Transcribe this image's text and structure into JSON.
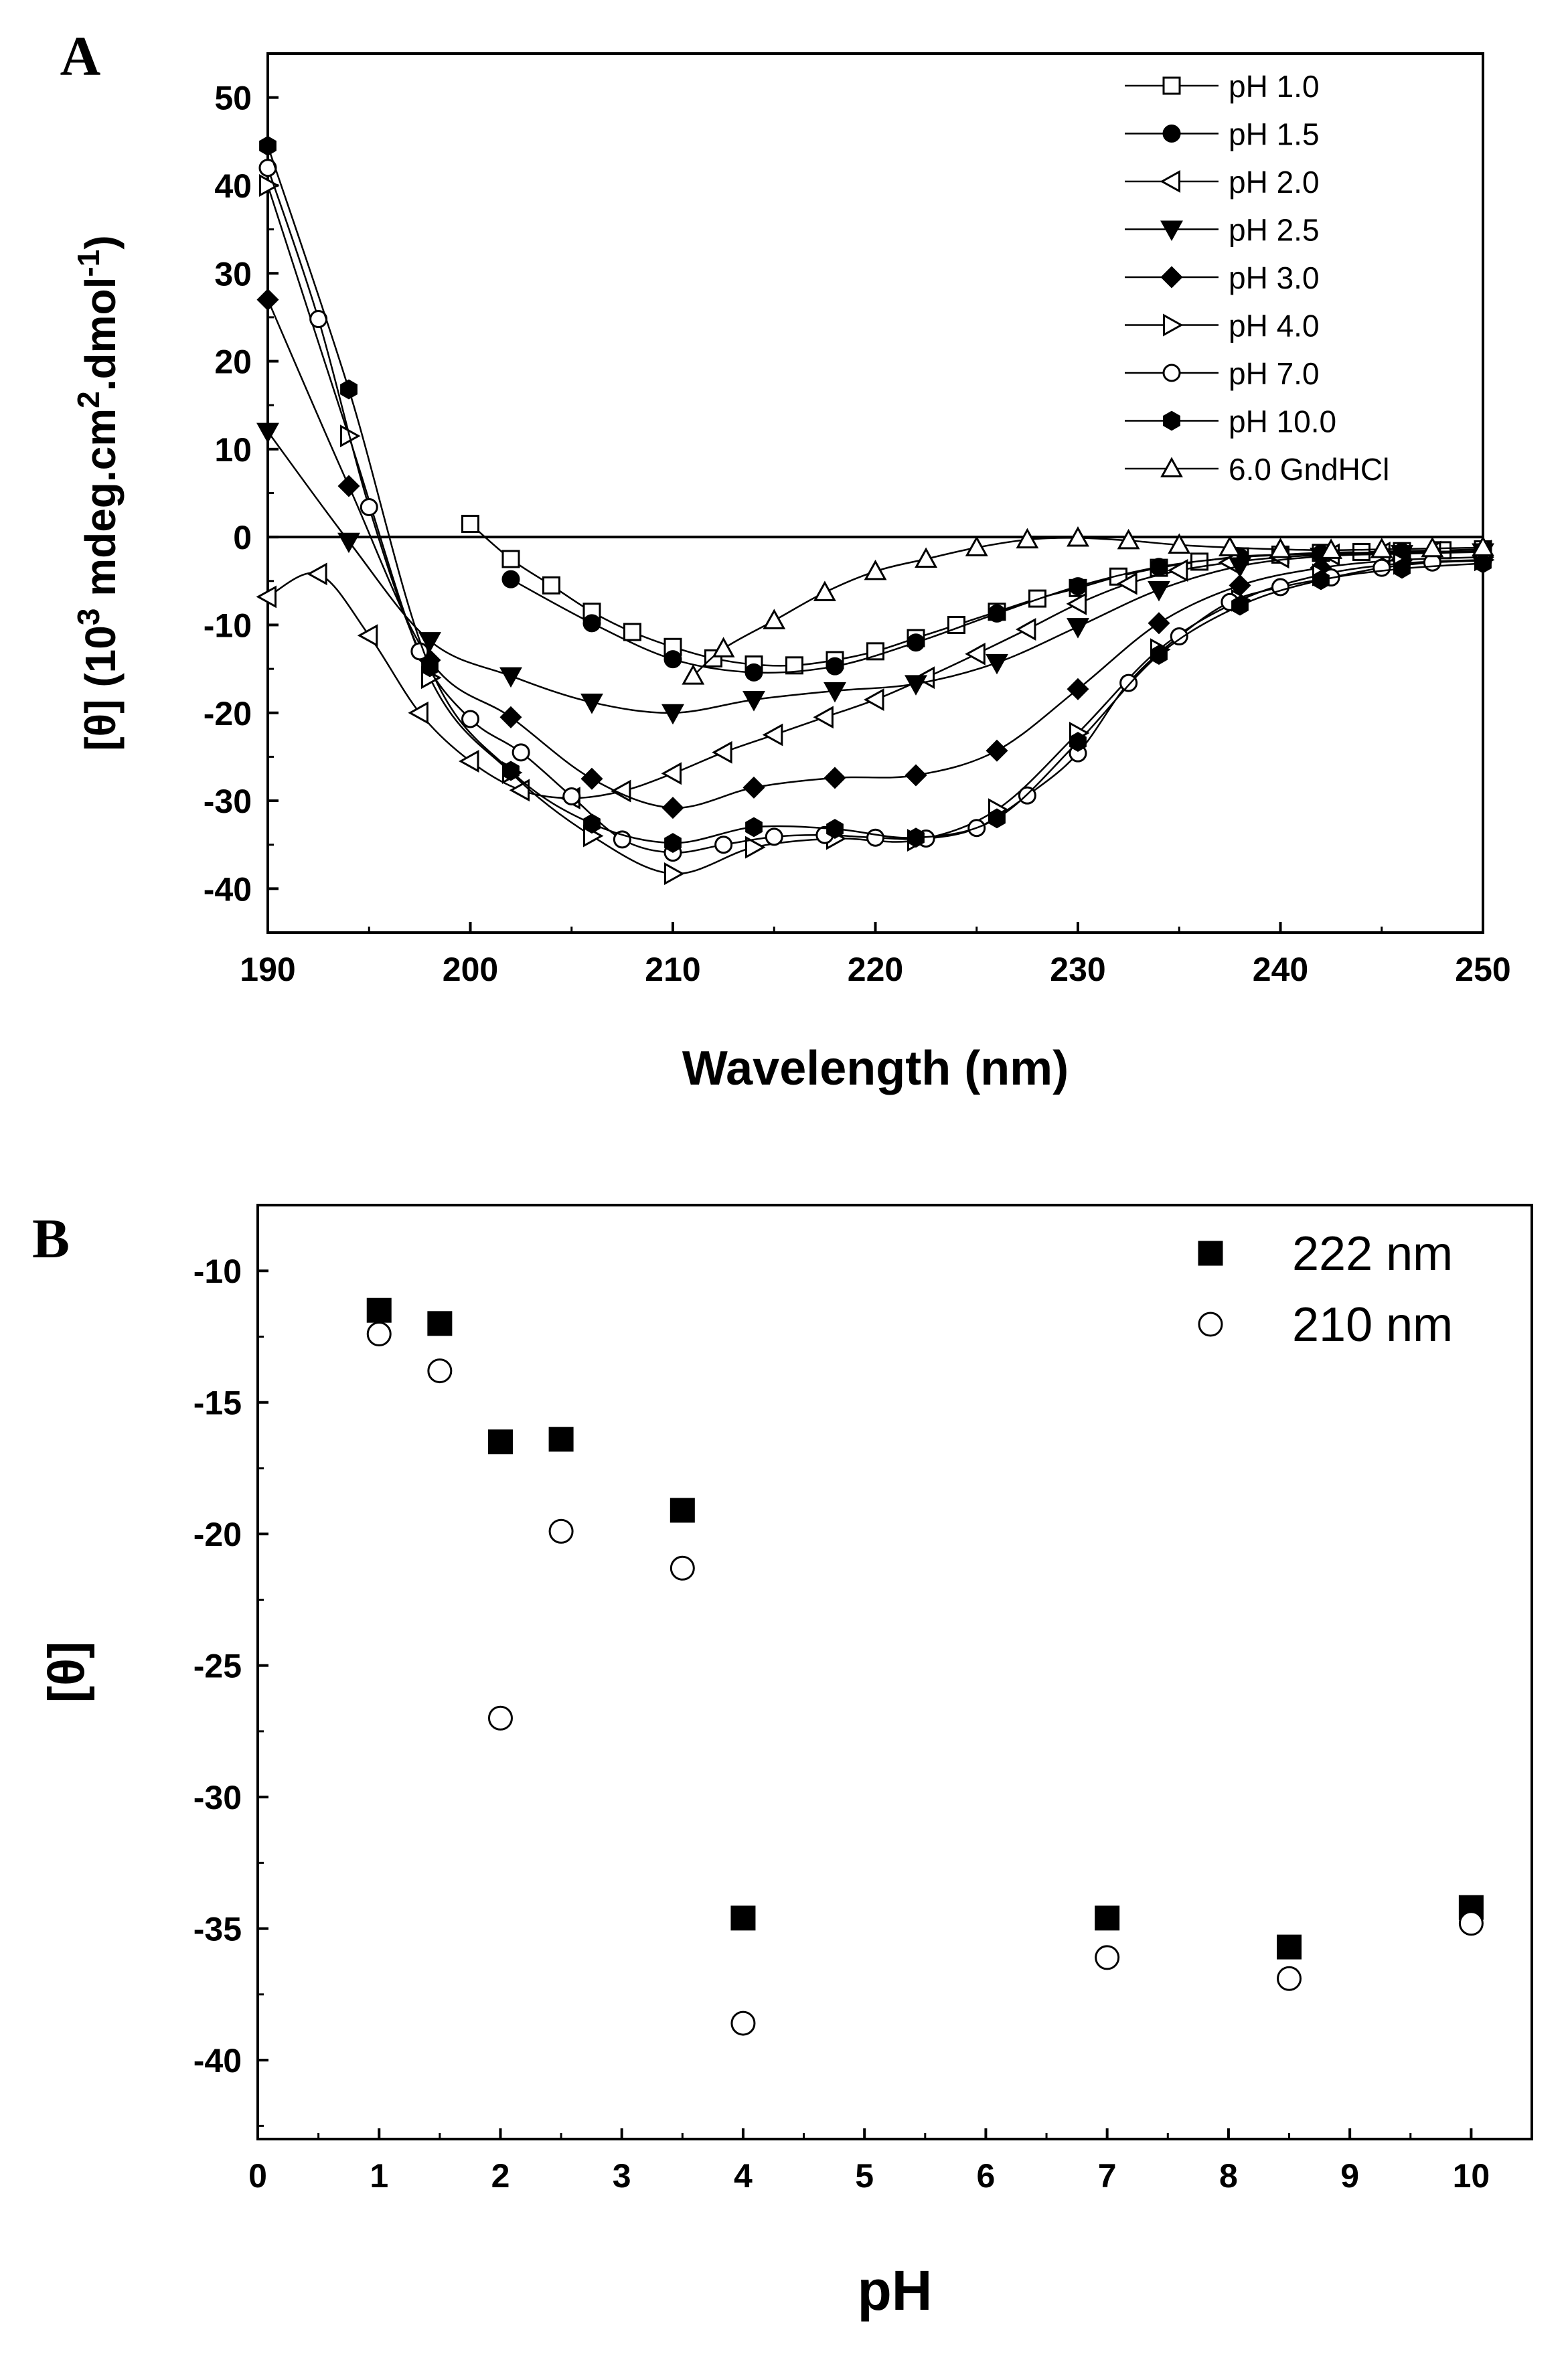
{
  "chart_data": [
    {
      "panel": "A",
      "type": "line",
      "xlabel": "Wavelength (nm)",
      "ylabel": {
        "prefix": "[θ] (10",
        "sup1": "3",
        "mid": " mdeg.cm",
        "sup2": "2",
        "mid2": ".dmol",
        "sup3": "-1",
        "suffix": ")"
      },
      "xlim": [
        190,
        250
      ],
      "ylim": [
        -45,
        55
      ],
      "xticks": [
        190,
        200,
        210,
        220,
        230,
        240,
        250
      ],
      "yticks": [
        -40,
        -30,
        -20,
        -10,
        0,
        10,
        20,
        30,
        40,
        50
      ],
      "zero_line": true,
      "legend_position": "top-right",
      "series": [
        {
          "name": "pH 1.0",
          "marker": "square",
          "filled": false,
          "x": [
            200,
            202,
            204,
            206,
            208,
            210,
            212,
            214,
            216,
            218,
            220,
            222,
            224,
            226,
            228,
            230,
            232,
            234,
            236,
            238,
            240,
            242,
            244,
            246,
            248,
            250
          ],
          "y": [
            1.5,
            -2.5,
            -5.5,
            -8.5,
            -10.8,
            -12.5,
            -13.8,
            -14.5,
            -14.6,
            -14.0,
            -13.0,
            -11.5,
            -10.0,
            -8.5,
            -7.0,
            -5.8,
            -4.5,
            -3.5,
            -2.8,
            -2.2,
            -2.0,
            -1.8,
            -1.7,
            -1.6,
            -1.5,
            -1.4
          ]
        },
        {
          "name": "pH 1.5",
          "marker": "circle",
          "filled": true,
          "x": [
            202,
            206,
            210,
            214,
            218,
            222,
            226,
            230,
            234,
            238,
            242,
            246,
            250
          ],
          "y": [
            -4.8,
            -9.8,
            -13.9,
            -15.4,
            -14.7,
            -12.0,
            -8.7,
            -5.6,
            -3.4,
            -2.3,
            -1.9,
            -1.7,
            -1.6
          ]
        },
        {
          "name": "pH 2.0",
          "marker": "triangle-left",
          "filled": false,
          "x": [
            190,
            192.5,
            195,
            197.5,
            200,
            202.5,
            205,
            207.5,
            210,
            212.5,
            215,
            217.5,
            220,
            222.5,
            225,
            227.5,
            230,
            232.5,
            235,
            237.5,
            240,
            242.5,
            245,
            247.5,
            250
          ],
          "y": [
            -6.8,
            -4.2,
            -11.2,
            -20.0,
            -25.5,
            -28.8,
            -29.7,
            -28.9,
            -26.9,
            -24.5,
            -22.5,
            -20.5,
            -18.5,
            -16.0,
            -13.3,
            -10.5,
            -7.6,
            -5.3,
            -3.8,
            -2.9,
            -2.3,
            -2.0,
            -1.8,
            -1.7,
            -1.6
          ]
        },
        {
          "name": "pH 2.5",
          "marker": "triangle-down",
          "filled": true,
          "x": [
            190,
            194,
            198,
            202,
            206,
            210,
            214,
            218,
            222,
            226,
            230,
            234,
            238,
            242,
            246,
            250
          ],
          "y": [
            12.0,
            -0.5,
            -11.8,
            -15.8,
            -18.8,
            -20.0,
            -18.5,
            -17.5,
            -16.7,
            -14.3,
            -10.2,
            -6.0,
            -3.3,
            -2.2,
            -1.9,
            -1.7
          ]
        },
        {
          "name": "pH 3.0",
          "marker": "diamond",
          "filled": true,
          "x": [
            190,
            194,
            198,
            202,
            206,
            210,
            214,
            218,
            222,
            226,
            230,
            234,
            238,
            242,
            246,
            250
          ],
          "y": [
            27.0,
            5.8,
            -14.0,
            -20.5,
            -27.5,
            -30.8,
            -28.5,
            -27.4,
            -27.1,
            -24.3,
            -17.3,
            -9.8,
            -5.5,
            -3.5,
            -2.6,
            -2.3
          ]
        },
        {
          "name": "pH 4.0",
          "marker": "triangle-right",
          "filled": false,
          "x": [
            190,
            194,
            198,
            202,
            206,
            210,
            214,
            218,
            222,
            226,
            230,
            234,
            238,
            242,
            246,
            250
          ],
          "y": [
            40.0,
            11.5,
            -16.0,
            -26.8,
            -34.0,
            -38.3,
            -35.3,
            -34.3,
            -34.5,
            -31.0,
            -22.3,
            -12.8,
            -7.2,
            -4.3,
            -3.0,
            -2.6
          ]
        },
        {
          "name": "pH 7.0",
          "marker": "circle",
          "filled": false,
          "x": [
            190,
            192.5,
            195,
            197.5,
            200,
            202.5,
            205,
            207.5,
            210,
            212.5,
            215,
            217.5,
            220,
            222.5,
            225,
            227.5,
            230,
            232.5,
            235,
            237.5,
            240,
            242.5,
            245,
            247.5,
            250
          ],
          "y": [
            42.0,
            24.8,
            3.4,
            -13.0,
            -20.7,
            -24.5,
            -29.5,
            -34.4,
            -35.9,
            -35.0,
            -34.1,
            -33.9,
            -34.2,
            -34.3,
            -33.1,
            -29.4,
            -24.6,
            -16.6,
            -11.3,
            -7.4,
            -5.7,
            -4.6,
            -3.5,
            -2.9,
            -2.7
          ]
        },
        {
          "name": "pH 10.0",
          "marker": "hexagon",
          "filled": true,
          "x": [
            190,
            194,
            198,
            202,
            206,
            210,
            214,
            218,
            222,
            226,
            230,
            234,
            238,
            242,
            246,
            250
          ],
          "y": [
            44.5,
            16.8,
            -14.8,
            -26.6,
            -32.6,
            -34.8,
            -33.0,
            -33.2,
            -34.2,
            -32.0,
            -23.3,
            -13.4,
            -7.8,
            -4.9,
            -3.6,
            -3.0
          ]
        },
        {
          "name": "6.0 GndHCl",
          "marker": "triangle-up",
          "filled": false,
          "x": [
            211,
            212.5,
            215,
            217.5,
            220,
            222.5,
            225,
            227.5,
            230,
            232.5,
            235,
            237.5,
            240,
            242.5,
            245,
            247.5,
            250
          ],
          "y": [
            -15.8,
            -12.7,
            -9.5,
            -6.3,
            -3.9,
            -2.5,
            -1.2,
            -0.3,
            -0.1,
            -0.4,
            -0.9,
            -1.2,
            -1.4,
            -1.5,
            -1.4,
            -1.3,
            -1.2
          ]
        }
      ]
    },
    {
      "panel": "B",
      "type": "scatter",
      "xlabel": "pH",
      "ylabel": "[θ]",
      "xlim": [
        0,
        10.5
      ],
      "ylim": [
        -43,
        -7.5
      ],
      "xticks": [
        0,
        1,
        2,
        3,
        4,
        5,
        6,
        7,
        8,
        9,
        10
      ],
      "yticks": [
        -40,
        -35,
        -30,
        -25,
        -20,
        -15,
        -10
      ],
      "legend_position": "top-right",
      "series": [
        {
          "name": "222 nm",
          "marker": "square",
          "filled": true,
          "x": [
            1.0,
            1.5,
            2.0,
            2.5,
            3.5,
            4.0,
            7.0,
            8.5,
            10.0
          ],
          "y": [
            -11.5,
            -12.0,
            -16.5,
            -16.4,
            -19.1,
            -34.6,
            -34.6,
            -35.7,
            -34.2
          ]
        },
        {
          "name": "210 nm",
          "marker": "circle",
          "filled": false,
          "x": [
            1.0,
            1.5,
            2.0,
            2.5,
            3.5,
            4.0,
            7.0,
            8.5,
            10.0
          ],
          "y": [
            -12.4,
            -13.8,
            -27.0,
            -19.9,
            -21.3,
            -38.6,
            -36.1,
            -36.9,
            -34.8
          ]
        }
      ]
    }
  ]
}
